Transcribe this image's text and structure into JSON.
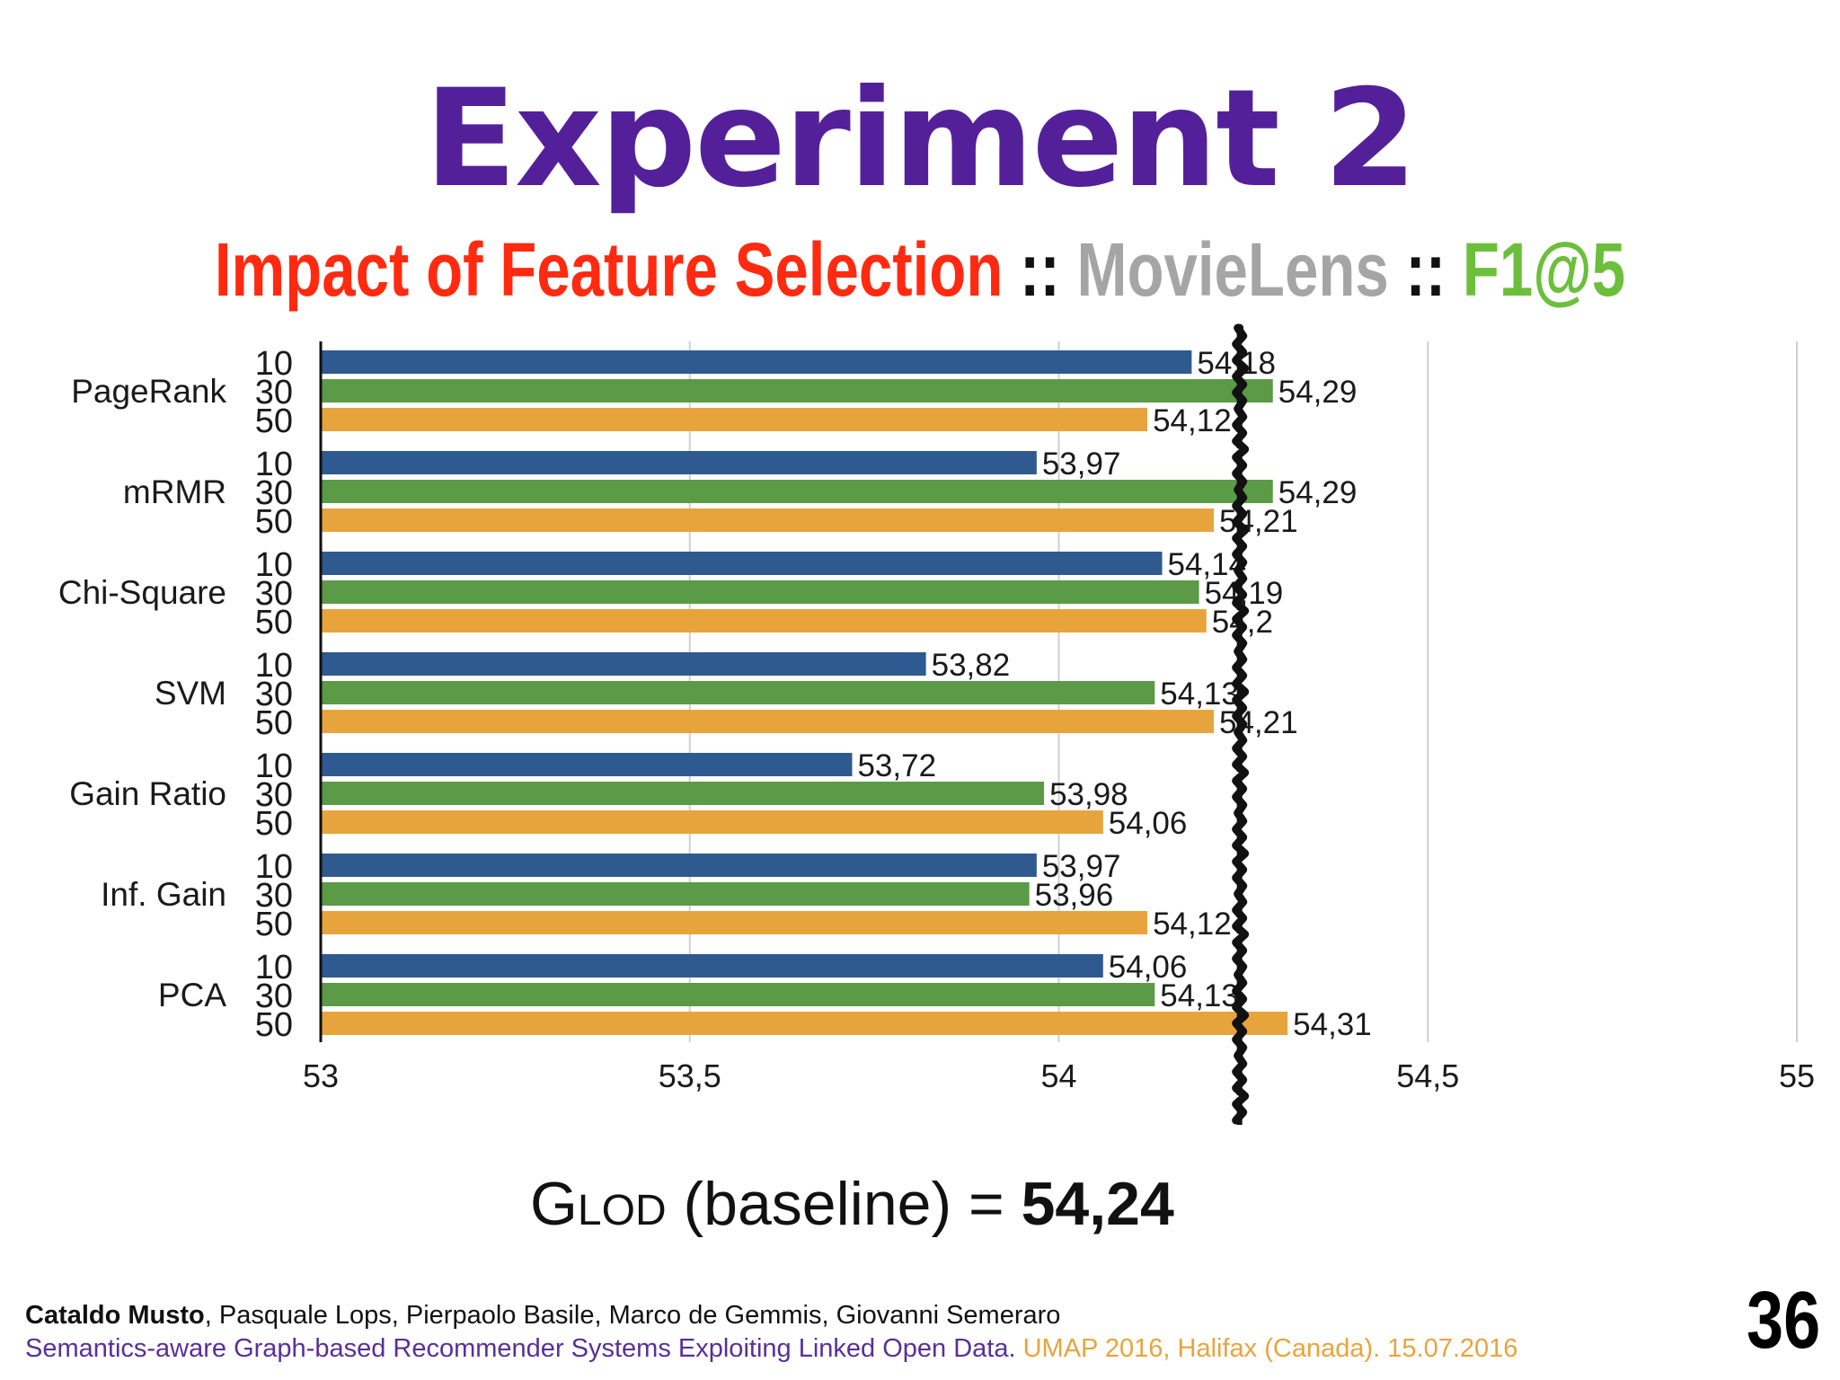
{
  "slide": {
    "title": "Experiment 2",
    "subtitle": {
      "part1": "Impact of Feature Selection",
      "sep1": " :: ",
      "part2": "MovieLens",
      "sep2": " :: ",
      "part3": "F1@5"
    },
    "baseline": {
      "label_prefix": "G",
      "label_sub": "LOD",
      "label_suffix": " (baseline) = ",
      "value_text": "54,24"
    },
    "authors": {
      "first": "Cataldo Musto",
      "rest": ", Pasquale Lops, Pierpaolo Basile, Marco de Gemmis, Giovanni Semeraro"
    },
    "reference": {
      "paper": "Semantics-aware Graph-based Recommender Systems Exploiting Linked Open Data.",
      "venue": " UMAP 2016, Halifax (Canada). 15.07.2016"
    },
    "slide_number": "36"
  },
  "colors": {
    "title": "#54209a",
    "subtitle_part1": "#ff2a10",
    "subtitle_part2": "#a5a5a5",
    "subtitle_part3": "#6cbf3a",
    "series_10": "#2f5a8f",
    "series_30": "#5b9a47",
    "series_50": "#e8a43c",
    "baseline_line": "#111111",
    "grid": "#cfcfcf"
  },
  "chart_data": {
    "type": "bar",
    "orientation": "horizontal",
    "categories": [
      "PageRank",
      "mRMR",
      "Chi-Square",
      "SVM",
      "Gain Ratio",
      "Inf. Gain",
      "PCA"
    ],
    "series": [
      {
        "name": "10",
        "values": [
          54.18,
          53.97,
          54.14,
          53.82,
          53.72,
          53.97,
          54.06
        ],
        "labels": [
          "54,18",
          "53,97",
          "54,14",
          "53,82",
          "53,72",
          "53,97",
          "54,06"
        ]
      },
      {
        "name": "30",
        "values": [
          54.29,
          54.29,
          54.19,
          54.13,
          53.98,
          53.96,
          54.13
        ],
        "labels": [
          "54,29",
          "54,29",
          "54,19",
          "54,13",
          "53,98",
          "53,96",
          "54,13"
        ]
      },
      {
        "name": "50",
        "values": [
          54.12,
          54.21,
          54.2,
          54.21,
          54.06,
          54.12,
          54.31
        ],
        "labels": [
          "54,12",
          "54,21",
          "54,2",
          "54,21",
          "54,06",
          "54,12",
          "54,31"
        ]
      }
    ],
    "xlim": [
      53,
      55
    ],
    "xticks": [
      53,
      53.5,
      54,
      54.5,
      55
    ],
    "xtick_labels": [
      "53",
      "53,5",
      "54",
      "54,5",
      "55"
    ],
    "baseline_value": 54.24,
    "grid": true,
    "legend": "none"
  }
}
